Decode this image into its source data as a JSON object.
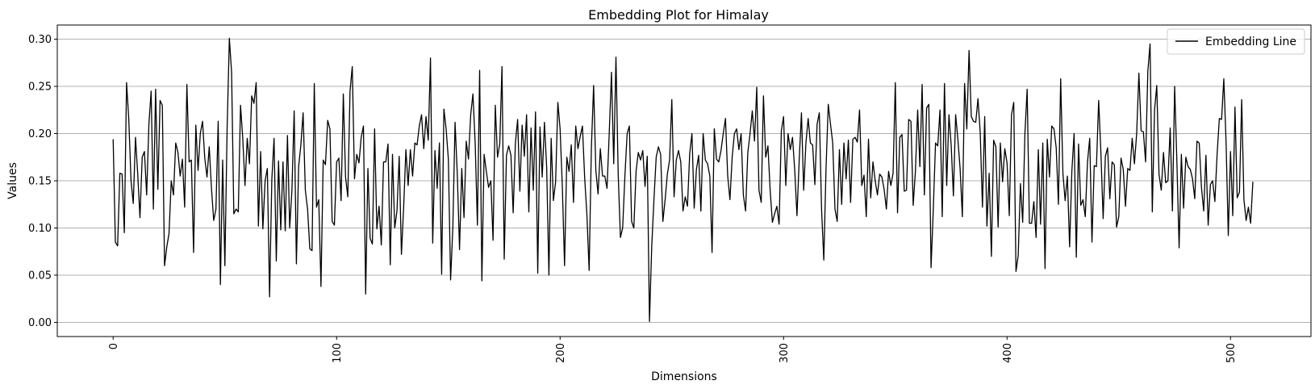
{
  "chart_data": {
    "type": "line",
    "title": "Embedding Plot for Himalay",
    "xlabel": "Dimensions",
    "ylabel": "Values",
    "xlim": [
      -25,
      536
    ],
    "ylim": [
      -0.015,
      0.315
    ],
    "xticks": [
      0,
      100,
      200,
      300,
      400,
      500
    ],
    "yticks": [
      0.0,
      0.05,
      0.1,
      0.15,
      0.2,
      0.25,
      0.3
    ],
    "ytick_labels": [
      "0.00",
      "0.05",
      "0.10",
      "0.15",
      "0.20",
      "0.25",
      "0.30"
    ],
    "xtick_rotation": 90,
    "grid": "horizontal",
    "legend_position": "top-right",
    "series": [
      {
        "name": "Embedding Line",
        "color": "#000000",
        "x_start": 0,
        "x_step": 1,
        "values": [
          0.194,
          0.085,
          0.081,
          0.158,
          0.157,
          0.095,
          0.254,
          0.215,
          0.15,
          0.126,
          0.196,
          0.157,
          0.111,
          0.175,
          0.181,
          0.135,
          0.21,
          0.245,
          0.12,
          0.247,
          0.141,
          0.235,
          0.23,
          0.06,
          0.08,
          0.094,
          0.15,
          0.135,
          0.19,
          0.18,
          0.155,
          0.173,
          0.122,
          0.252,
          0.17,
          0.172,
          0.074,
          0.209,
          0.161,
          0.2,
          0.213,
          0.174,
          0.154,
          0.186,
          0.142,
          0.108,
          0.12,
          0.213,
          0.04,
          0.172,
          0.06,
          0.205,
          0.301,
          0.265,
          0.115,
          0.12,
          0.117,
          0.23,
          0.195,
          0.145,
          0.195,
          0.168,
          0.24,
          0.232,
          0.254,
          0.102,
          0.181,
          0.099,
          0.15,
          0.163,
          0.027,
          0.151,
          0.195,
          0.065,
          0.171,
          0.098,
          0.17,
          0.097,
          0.198,
          0.1,
          0.14,
          0.224,
          0.062,
          0.165,
          0.188,
          0.222,
          0.14,
          0.12,
          0.078,
          0.076,
          0.253,
          0.122,
          0.13,
          0.038,
          0.172,
          0.167,
          0.214,
          0.205,
          0.107,
          0.103,
          0.17,
          0.174,
          0.129,
          0.242,
          0.154,
          0.133,
          0.245,
          0.271,
          0.152,
          0.178,
          0.169,
          0.196,
          0.208,
          0.03,
          0.163,
          0.089,
          0.083,
          0.205,
          0.099,
          0.123,
          0.082,
          0.17,
          0.17,
          0.189,
          0.061,
          0.178,
          0.1,
          0.118,
          0.176,
          0.072,
          0.122,
          0.183,
          0.145,
          0.183,
          0.155,
          0.19,
          0.188,
          0.208,
          0.22,
          0.184,
          0.218,
          0.193,
          0.28,
          0.084,
          0.182,
          0.142,
          0.19,
          0.051,
          0.226,
          0.205,
          0.173,
          0.045,
          0.1,
          0.212,
          0.157,
          0.077,
          0.163,
          0.111,
          0.192,
          0.173,
          0.22,
          0.242,
          0.19,
          0.103,
          0.267,
          0.044,
          0.178,
          0.16,
          0.143,
          0.15,
          0.087,
          0.23,
          0.175,
          0.189,
          0.271,
          0.067,
          0.177,
          0.187,
          0.177,
          0.116,
          0.19,
          0.215,
          0.139,
          0.209,
          0.176,
          0.22,
          0.117,
          0.206,
          0.14,
          0.223,
          0.052,
          0.207,
          0.154,
          0.212,
          0.164,
          0.05,
          0.195,
          0.129,
          0.149,
          0.233,
          0.205,
          0.144,
          0.06,
          0.175,
          0.16,
          0.188,
          0.127,
          0.208,
          0.184,
          0.197,
          0.208,
          0.153,
          0.114,
          0.055,
          0.185,
          0.251,
          0.161,
          0.136,
          0.184,
          0.155,
          0.155,
          0.142,
          0.201,
          0.265,
          0.168,
          0.281,
          0.157,
          0.09,
          0.1,
          0.155,
          0.2,
          0.208,
          0.107,
          0.1,
          0.16,
          0.18,
          0.172,
          0.182,
          0.144,
          0.176,
          0.001,
          0.08,
          0.13,
          0.175,
          0.186,
          0.178,
          0.107,
          0.13,
          0.157,
          0.172,
          0.236,
          0.133,
          0.172,
          0.182,
          0.17,
          0.118,
          0.133,
          0.123,
          0.179,
          0.2,
          0.121,
          0.162,
          0.177,
          0.118,
          0.2,
          0.172,
          0.168,
          0.155,
          0.074,
          0.205,
          0.173,
          0.17,
          0.182,
          0.2,
          0.216,
          0.155,
          0.13,
          0.175,
          0.2,
          0.205,
          0.183,
          0.2,
          0.135,
          0.118,
          0.18,
          0.2,
          0.224,
          0.192,
          0.249,
          0.14,
          0.127,
          0.24,
          0.175,
          0.187,
          0.14,
          0.106,
          0.115,
          0.123,
          0.104,
          0.203,
          0.218,
          0.145,
          0.2,
          0.183,
          0.196,
          0.161,
          0.113,
          0.172,
          0.222,
          0.14,
          0.19,
          0.216,
          0.19,
          0.188,
          0.146,
          0.21,
          0.222,
          0.12,
          0.066,
          0.163,
          0.231,
          0.21,
          0.19,
          0.12,
          0.107,
          0.183,
          0.125,
          0.19,
          0.152,
          0.193,
          0.127,
          0.194,
          0.196,
          0.191,
          0.225,
          0.145,
          0.156,
          0.112,
          0.194,
          0.132,
          0.17,
          0.15,
          0.135,
          0.157,
          0.154,
          0.141,
          0.12,
          0.16,
          0.145,
          0.158,
          0.254,
          0.116,
          0.196,
          0.199,
          0.139,
          0.14,
          0.215,
          0.213,
          0.124,
          0.16,
          0.225,
          0.165,
          0.252,
          0.135,
          0.227,
          0.231,
          0.058,
          0.12,
          0.19,
          0.187,
          0.225,
          0.112,
          0.253,
          0.145,
          0.22,
          0.188,
          0.134,
          0.22,
          0.194,
          0.163,
          0.112,
          0.253,
          0.205,
          0.288,
          0.218,
          0.213,
          0.212,
          0.237,
          0.201,
          0.122,
          0.218,
          0.102,
          0.158,
          0.07,
          0.193,
          0.186,
          0.101,
          0.19,
          0.149,
          0.184,
          0.169,
          0.113,
          0.22,
          0.233,
          0.054,
          0.071,
          0.147,
          0.106,
          0.2,
          0.247,
          0.105,
          0.105,
          0.128,
          0.09,
          0.183,
          0.104,
          0.19,
          0.057,
          0.194,
          0.154,
          0.208,
          0.205,
          0.185,
          0.125,
          0.258,
          0.158,
          0.129,
          0.155,
          0.08,
          0.16,
          0.2,
          0.069,
          0.189,
          0.124,
          0.13,
          0.112,
          0.17,
          0.195,
          0.085,
          0.166,
          0.165,
          0.235,
          0.18,
          0.11,
          0.176,
          0.185,
          0.131,
          0.17,
          0.167,
          0.101,
          0.112,
          0.174,
          0.162,
          0.123,
          0.163,
          0.161,
          0.195,
          0.168,
          0.2,
          0.264,
          0.203,
          0.202,
          0.17,
          0.266,
          0.295,
          0.117,
          0.225,
          0.251,
          0.157,
          0.14,
          0.18,
          0.148,
          0.15,
          0.206,
          0.118,
          0.25,
          0.17,
          0.079,
          0.178,
          0.121,
          0.175,
          0.165,
          0.162,
          0.152,
          0.131,
          0.192,
          0.19,
          0.143,
          0.118,
          0.177,
          0.103,
          0.146,
          0.15,
          0.128,
          0.178,
          0.216,
          0.215,
          0.258,
          0.192,
          0.092,
          0.181,
          0.113,
          0.228,
          0.132,
          0.138,
          0.236,
          0.13,
          0.108,
          0.122,
          0.105,
          0.149
        ]
      }
    ]
  }
}
